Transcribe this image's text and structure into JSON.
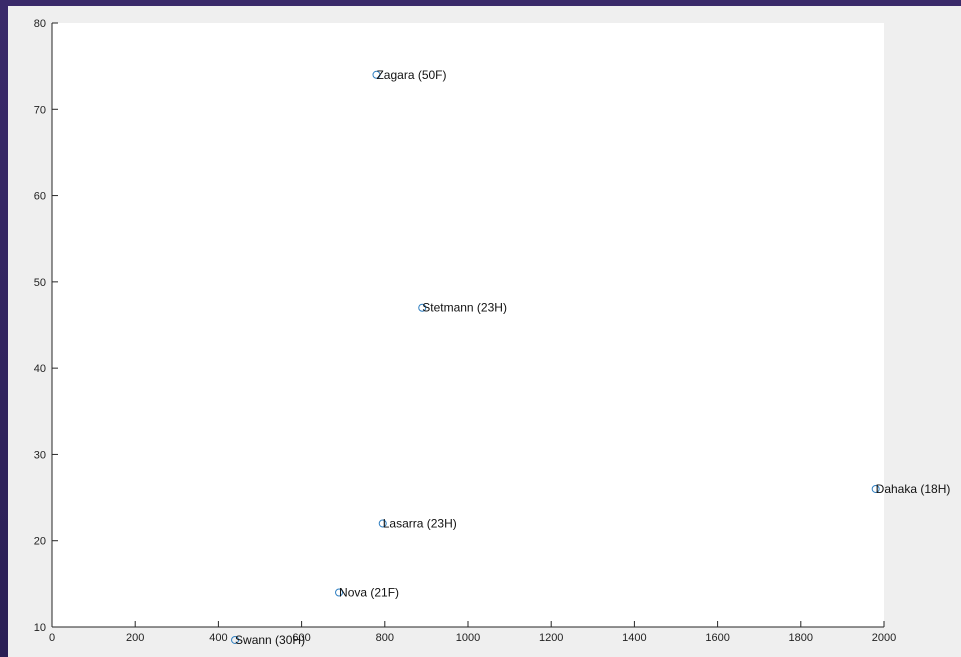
{
  "chart_data": {
    "type": "scatter",
    "xlim": [
      0,
      2000
    ],
    "ylim": [
      10,
      80
    ],
    "xticks": [
      0,
      200,
      400,
      600,
      800,
      1000,
      1200,
      1400,
      1600,
      1800,
      2000
    ],
    "yticks": [
      10,
      20,
      30,
      40,
      50,
      60,
      70,
      80
    ],
    "grid": false,
    "marker": "open-circle",
    "marker_color": "#2f7fc1",
    "background_color": "#ffffff",
    "points": [
      {
        "x": 780,
        "y": 74,
        "label": "Zagara (50F)"
      },
      {
        "x": 890,
        "y": 47,
        "label": "Stetmann (23H)"
      },
      {
        "x": 1980,
        "y": 26,
        "label": "Dahaka (18H)"
      },
      {
        "x": 795,
        "y": 22,
        "label": "Lasarra (23H)"
      },
      {
        "x": 690,
        "y": 14,
        "label": "Nova (21F)"
      },
      {
        "x": 440,
        "y": 8.5,
        "label": "Swann (30H)"
      }
    ]
  }
}
